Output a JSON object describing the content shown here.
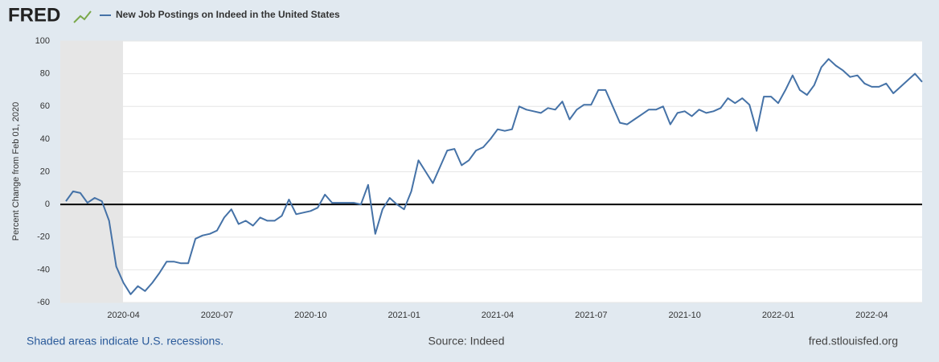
{
  "logo": "FRED",
  "footer": {
    "left": "Shaded areas indicate U.S. recessions.",
    "center": "Source: Indeed",
    "right": "fred.stlouisfed.org"
  },
  "chart_data": {
    "type": "line",
    "y_label": "Percent Change from Feb 01, 2020",
    "categories": [
      null,
      null,
      null,
      null,
      null,
      null,
      null,
      null,
      "2020-04",
      null,
      null,
      null,
      null,
      null,
      null,
      null,
      null,
      null,
      null,
      null,
      null,
      "2020-07",
      null,
      null,
      null,
      null,
      null,
      null,
      null,
      null,
      null,
      null,
      null,
      null,
      "2020-10",
      null,
      null,
      null,
      null,
      null,
      null,
      null,
      null,
      null,
      null,
      null,
      null,
      "2021-01",
      null,
      null,
      null,
      null,
      null,
      null,
      null,
      null,
      null,
      null,
      null,
      null,
      "2021-04",
      null,
      null,
      null,
      null,
      null,
      null,
      null,
      null,
      null,
      null,
      null,
      null,
      "2021-07",
      null,
      null,
      null,
      null,
      null,
      null,
      null,
      null,
      null,
      null,
      null,
      null,
      "2021-10",
      null,
      null,
      null,
      null,
      null,
      null,
      null,
      null,
      null,
      null,
      null,
      null,
      "2022-01",
      null,
      null,
      null,
      null,
      null,
      null,
      null,
      null,
      null,
      null,
      null,
      null,
      "2022-04",
      null,
      null,
      null,
      null,
      null,
      null,
      null
    ],
    "series": [
      {
        "name": "New Job Postings on Indeed in the United States",
        "color": "#4572a7",
        "values": [
          2,
          8,
          7,
          1,
          4,
          2,
          -10,
          -38,
          -48,
          -55,
          -50,
          -53,
          -48,
          -42,
          -35,
          -35,
          -36,
          -36,
          -21,
          -19,
          -18,
          -16,
          -8,
          -3,
          -12,
          -10,
          -13,
          -8,
          -10,
          -10,
          -7,
          3,
          -6,
          -5,
          -4,
          -2,
          6,
          1,
          1,
          1,
          1,
          0,
          12,
          -18,
          -3,
          4,
          0,
          -3,
          8,
          27,
          20,
          13,
          23,
          33,
          34,
          24,
          27,
          33,
          35,
          40,
          46,
          45,
          46,
          60,
          58,
          57,
          56,
          59,
          58,
          63,
          52,
          58,
          61,
          61,
          70,
          70,
          60,
          50,
          49,
          52,
          55,
          58,
          58,
          60,
          49,
          56,
          57,
          54,
          58,
          56,
          57,
          59,
          65,
          62,
          65,
          61,
          45,
          66,
          66,
          62,
          70,
          79,
          70,
          67,
          73,
          84,
          89,
          85,
          82,
          78,
          79,
          74,
          72,
          72,
          74,
          68,
          72,
          76,
          80,
          75
        ]
      }
    ],
    "ylim": [
      -60,
      100
    ],
    "yticks": [
      -60,
      -40,
      -20,
      0,
      20,
      40,
      60,
      80,
      100
    ],
    "grid": true
  }
}
